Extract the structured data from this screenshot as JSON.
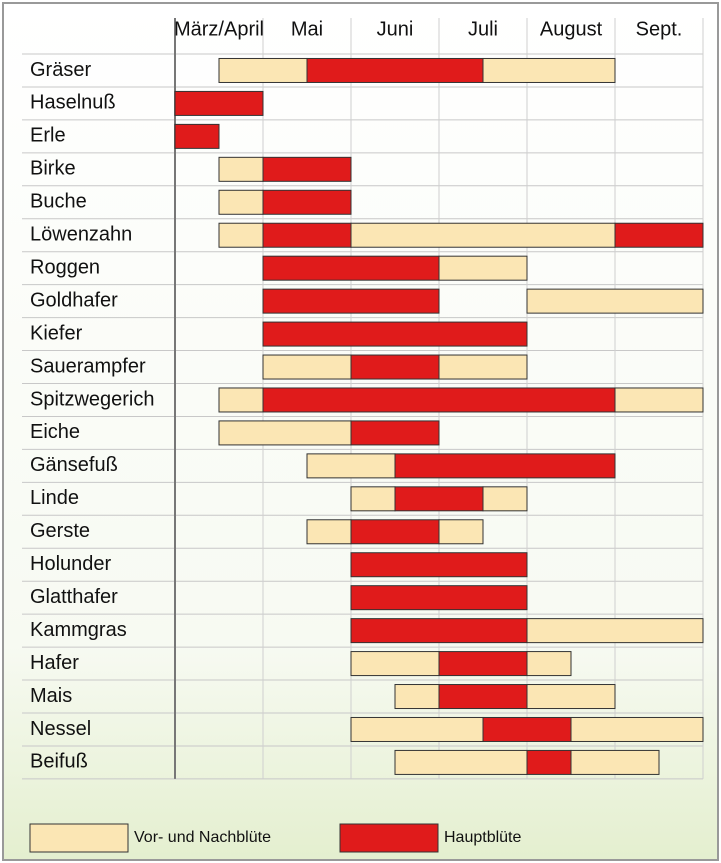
{
  "chart_data": {
    "type": "gantt",
    "columns": [
      "März/April",
      "Mai",
      "Juni",
      "Juli",
      "August",
      "Sept."
    ],
    "xlim": [
      0,
      12
    ],
    "xticks": [
      0,
      2,
      4,
      6,
      8,
      10,
      12
    ],
    "legend": [
      {
        "name": "Vor- und Nachblüte",
        "color": "#fbe6b4"
      },
      {
        "name": "Hauptblüte",
        "color": "#e01b1b"
      }
    ],
    "rows": [
      {
        "name": "Gräser",
        "segments": [
          {
            "start": 1,
            "end": 3,
            "phase": 0
          },
          {
            "start": 3,
            "end": 7,
            "phase": 1
          },
          {
            "start": 7,
            "end": 10,
            "phase": 0
          }
        ]
      },
      {
        "name": "Haselnuß",
        "segments": [
          {
            "start": 0,
            "end": 2,
            "phase": 1
          }
        ]
      },
      {
        "name": "Erle",
        "segments": [
          {
            "start": 0,
            "end": 1,
            "phase": 1
          }
        ]
      },
      {
        "name": "Birke",
        "segments": [
          {
            "start": 1,
            "end": 2,
            "phase": 0
          },
          {
            "start": 2,
            "end": 4,
            "phase": 1
          }
        ]
      },
      {
        "name": "Buche",
        "segments": [
          {
            "start": 1,
            "end": 2,
            "phase": 0
          },
          {
            "start": 2,
            "end": 4,
            "phase": 1
          }
        ]
      },
      {
        "name": "Löwenzahn",
        "segments": [
          {
            "start": 1,
            "end": 2,
            "phase": 0
          },
          {
            "start": 2,
            "end": 4,
            "phase": 1
          },
          {
            "start": 4,
            "end": 10,
            "phase": 0
          },
          {
            "start": 10,
            "end": 12,
            "phase": 1
          }
        ]
      },
      {
        "name": "Roggen",
        "segments": [
          {
            "start": 2,
            "end": 6,
            "phase": 1
          },
          {
            "start": 6,
            "end": 8,
            "phase": 0
          }
        ]
      },
      {
        "name": "Goldhafer",
        "segments": [
          {
            "start": 2,
            "end": 6,
            "phase": 1
          },
          {
            "start": 8,
            "end": 12,
            "phase": 0
          }
        ]
      },
      {
        "name": "Kiefer",
        "segments": [
          {
            "start": 2,
            "end": 8,
            "phase": 1
          }
        ]
      },
      {
        "name": "Sauerampfer",
        "segments": [
          {
            "start": 2,
            "end": 4,
            "phase": 0
          },
          {
            "start": 4,
            "end": 6,
            "phase": 1
          },
          {
            "start": 6,
            "end": 8,
            "phase": 0
          }
        ]
      },
      {
        "name": "Spitzwegerich",
        "segments": [
          {
            "start": 1,
            "end": 2,
            "phase": 0
          },
          {
            "start": 2,
            "end": 10,
            "phase": 1
          },
          {
            "start": 10,
            "end": 12,
            "phase": 0
          }
        ]
      },
      {
        "name": "Eiche",
        "segments": [
          {
            "start": 1,
            "end": 4,
            "phase": 0
          },
          {
            "start": 4,
            "end": 6,
            "phase": 1
          }
        ]
      },
      {
        "name": "Gänsefuß",
        "segments": [
          {
            "start": 3,
            "end": 5,
            "phase": 0
          },
          {
            "start": 5,
            "end": 10,
            "phase": 1
          }
        ]
      },
      {
        "name": "Linde",
        "segments": [
          {
            "start": 4,
            "end": 5,
            "phase": 0
          },
          {
            "start": 5,
            "end": 7,
            "phase": 1
          },
          {
            "start": 7,
            "end": 8,
            "phase": 0
          }
        ]
      },
      {
        "name": "Gerste",
        "segments": [
          {
            "start": 3,
            "end": 4,
            "phase": 0
          },
          {
            "start": 4,
            "end": 6,
            "phase": 1
          },
          {
            "start": 6,
            "end": 7,
            "phase": 0
          }
        ]
      },
      {
        "name": "Holunder",
        "segments": [
          {
            "start": 4,
            "end": 8,
            "phase": 1
          }
        ]
      },
      {
        "name": "Glatthafer",
        "segments": [
          {
            "start": 4,
            "end": 8,
            "phase": 1
          }
        ]
      },
      {
        "name": "Kammgras",
        "segments": [
          {
            "start": 4,
            "end": 8,
            "phase": 1
          },
          {
            "start": 8,
            "end": 12,
            "phase": 0
          }
        ]
      },
      {
        "name": "Hafer",
        "segments": [
          {
            "start": 4,
            "end": 6,
            "phase": 0
          },
          {
            "start": 6,
            "end": 8,
            "phase": 1
          },
          {
            "start": 8,
            "end": 9,
            "phase": 0
          }
        ]
      },
      {
        "name": "Mais",
        "segments": [
          {
            "start": 5,
            "end": 6,
            "phase": 0
          },
          {
            "start": 6,
            "end": 8,
            "phase": 1
          },
          {
            "start": 8,
            "end": 10,
            "phase": 0
          }
        ]
      },
      {
        "name": "Nessel",
        "segments": [
          {
            "start": 4,
            "end": 7,
            "phase": 0
          },
          {
            "start": 7,
            "end": 9,
            "phase": 1
          },
          {
            "start": 9,
            "end": 12,
            "phase": 0
          }
        ]
      },
      {
        "name": "Beifuß",
        "segments": [
          {
            "start": 5,
            "end": 8,
            "phase": 0
          },
          {
            "start": 8,
            "end": 9,
            "phase": 1
          },
          {
            "start": 9,
            "end": 11,
            "phase": 0
          }
        ]
      }
    ]
  }
}
